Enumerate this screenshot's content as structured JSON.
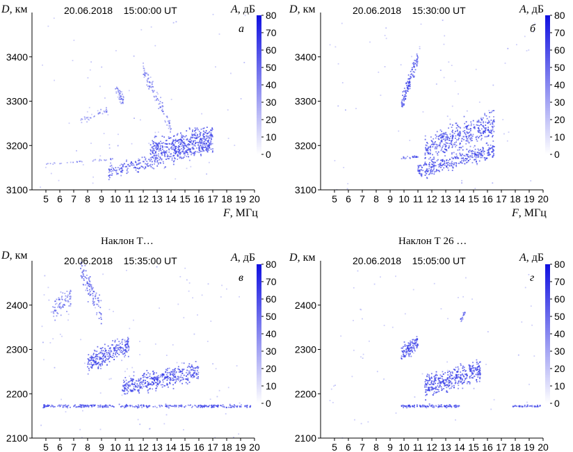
{
  "colors": {
    "point": "#3a40e8",
    "point_light": "#a9b4f2",
    "colorbar_top": "#1010e0",
    "colorbar_bottom": "#ffffff",
    "axis": "#000000"
  },
  "captions": [
    "Наклон Т…",
    "Наклон Т 26 …"
  ],
  "chart_data": [
    {
      "id": "a",
      "type": "scatter",
      "panel_letter": "а",
      "timestamp": "20.06.2018    15:00:00 UT",
      "ylabel_var": "D",
      "ylabel_unit": ", км",
      "xlabel_var": "F",
      "xlabel_unit": ", МГц",
      "clabel_var": "A",
      "clabel_unit": ", дБ",
      "xlim": [
        4,
        20
      ],
      "ylim": [
        3100,
        3500
      ],
      "xticks": [
        5,
        6,
        7,
        8,
        9,
        10,
        11,
        12,
        13,
        14,
        15,
        16,
        17,
        18,
        19,
        20
      ],
      "yticks": [
        3100,
        3200,
        3300,
        3400
      ],
      "clim": [
        0,
        80
      ],
      "cticks": [
        0,
        10,
        20,
        30,
        40,
        50,
        60,
        70,
        80
      ],
      "show_xlabel": true,
      "clusters": [
        {
          "fx": [
            9.5,
            17.0
          ],
          "d0": 3140,
          "d1": 3200,
          "w": 25,
          "n": 320,
          "a": 45
        },
        {
          "fx": [
            12.5,
            17.0
          ],
          "d0": 3190,
          "d1": 3220,
          "w": 38,
          "n": 380,
          "a": 50
        },
        {
          "fx": [
            12.0,
            14.0
          ],
          "d0": 3370,
          "d1": 3240,
          "w": 25,
          "n": 90,
          "a": 35
        },
        {
          "fx": [
            10.0,
            10.6
          ],
          "d0": 3330,
          "d1": 3300,
          "w": 20,
          "n": 40,
          "a": 35
        },
        {
          "fx": [
            7.5,
            9.5
          ],
          "d0": 3255,
          "d1": 3280,
          "w": 10,
          "n": 35,
          "a": 30
        },
        {
          "fx": [
            5.0,
            10.0
          ],
          "d0": 3158,
          "d1": 3170,
          "w": 3,
          "n": 30,
          "a": 30
        },
        {
          "fx": [
            4.5,
            19.5
          ],
          "d0": 3100,
          "d1": 3500,
          "w": 0,
          "n": 70,
          "a": 15
        }
      ]
    },
    {
      "id": "b",
      "type": "scatter",
      "panel_letter": "б",
      "timestamp": "20.06.2018    15:30:00 UT",
      "ylabel_var": "D",
      "ylabel_unit": ", км",
      "xlabel_var": "F",
      "xlabel_unit": ", МГц",
      "clabel_var": "A",
      "clabel_unit": ", дБ",
      "xlim": [
        4,
        20
      ],
      "ylim": [
        3100,
        3500
      ],
      "xticks": [
        5,
        6,
        7,
        8,
        9,
        10,
        11,
        12,
        13,
        14,
        15,
        16,
        17,
        18,
        19,
        20
      ],
      "yticks": [
        3100,
        3200,
        3300,
        3400
      ],
      "clim": [
        0,
        80
      ],
      "cticks": [
        0,
        10,
        20,
        30,
        40,
        50,
        60,
        70,
        80
      ],
      "show_xlabel": true,
      "clusters": [
        {
          "fx": [
            9.8,
            11.0
          ],
          "d0": 3290,
          "d1": 3400,
          "w": 28,
          "n": 110,
          "a": 50
        },
        {
          "fx": [
            11.0,
            16.5
          ],
          "d0": 3140,
          "d1": 3190,
          "w": 25,
          "n": 320,
          "a": 50
        },
        {
          "fx": [
            11.5,
            16.5
          ],
          "d0": 3190,
          "d1": 3250,
          "w": 45,
          "n": 400,
          "a": 50
        },
        {
          "fx": [
            9.8,
            11.0
          ],
          "d0": 3172,
          "d1": 3175,
          "w": 4,
          "n": 30,
          "a": 35
        },
        {
          "fx": [
            4.5,
            19.5
          ],
          "d0": 3100,
          "d1": 3500,
          "w": 0,
          "n": 70,
          "a": 15
        }
      ]
    },
    {
      "id": "c",
      "type": "scatter",
      "panel_letter": "в",
      "timestamp": "20.06.2018    15:35:00 UT",
      "ylabel_var": "D",
      "ylabel_unit": ", км",
      "xlabel_var": "F",
      "xlabel_unit": ", МГц",
      "clabel_var": "A",
      "clabel_unit": ", дБ",
      "xlim": [
        4,
        20
      ],
      "ylim": [
        2100,
        2500
      ],
      "xticks": [
        5,
        6,
        7,
        8,
        9,
        10,
        11,
        12,
        13,
        14,
        15,
        16,
        17,
        18,
        19,
        20
      ],
      "yticks": [
        2100,
        2200,
        2300,
        2400
      ],
      "clim": [
        0,
        80
      ],
      "cticks": [
        0,
        10,
        20,
        30,
        40,
        50,
        60,
        70,
        80
      ],
      "show_xlabel": false,
      "clusters": [
        {
          "fx": [
            10.5,
            16.0
          ],
          "d0": 2215,
          "d1": 2250,
          "w": 30,
          "n": 420,
          "a": 50
        },
        {
          "fx": [
            8.0,
            11.0
          ],
          "d0": 2270,
          "d1": 2310,
          "w": 35,
          "n": 260,
          "a": 50
        },
        {
          "fx": [
            7.5,
            9.0
          ],
          "d0": 2480,
          "d1": 2380,
          "w": 40,
          "n": 110,
          "a": 40
        },
        {
          "fx": [
            5.5,
            6.8
          ],
          "d0": 2390,
          "d1": 2420,
          "w": 35,
          "n": 80,
          "a": 35
        },
        {
          "fx": [
            4.8,
            19.8
          ],
          "d0": 2172,
          "d1": 2172,
          "w": 5,
          "n": 320,
          "a": 45
        },
        {
          "fx": [
            4.5,
            19.5
          ],
          "d0": 2100,
          "d1": 2500,
          "w": 0,
          "n": 90,
          "a": 15
        }
      ]
    },
    {
      "id": "d",
      "type": "scatter",
      "panel_letter": "г",
      "timestamp": "20.06.2018    15:05:00 UT",
      "ylabel_var": "D",
      "ylabel_unit": ", км",
      "xlabel_var": "F",
      "xlabel_unit": ", МГц",
      "clabel_var": "A",
      "clabel_unit": ", дБ",
      "xlim": [
        4,
        20
      ],
      "ylim": [
        2100,
        2500
      ],
      "xticks": [
        5,
        6,
        7,
        8,
        9,
        10,
        11,
        12,
        13,
        14,
        15,
        16,
        17,
        18,
        19,
        20
      ],
      "yticks": [
        2100,
        2200,
        2300,
        2400
      ],
      "clim": [
        0,
        80
      ],
      "cticks": [
        0,
        10,
        20,
        30,
        40,
        50,
        60,
        70,
        80
      ],
      "show_xlabel": false,
      "clusters": [
        {
          "fx": [
            11.5,
            15.5
          ],
          "d0": 2215,
          "d1": 2255,
          "w": 35,
          "n": 380,
          "a": 50
        },
        {
          "fx": [
            9.8,
            11.0
          ],
          "d0": 2290,
          "d1": 2320,
          "w": 30,
          "n": 110,
          "a": 50
        },
        {
          "fx": [
            14.0,
            14.4
          ],
          "d0": 2360,
          "d1": 2385,
          "w": 10,
          "n": 20,
          "a": 35
        },
        {
          "fx": [
            9.8,
            14.0
          ],
          "d0": 2172,
          "d1": 2172,
          "w": 5,
          "n": 120,
          "a": 45
        },
        {
          "fx": [
            17.8,
            19.8
          ],
          "d0": 2172,
          "d1": 2172,
          "w": 4,
          "n": 45,
          "a": 45
        },
        {
          "fx": [
            4.5,
            19.5
          ],
          "d0": 2100,
          "d1": 2500,
          "w": 0,
          "n": 60,
          "a": 15
        }
      ]
    }
  ]
}
